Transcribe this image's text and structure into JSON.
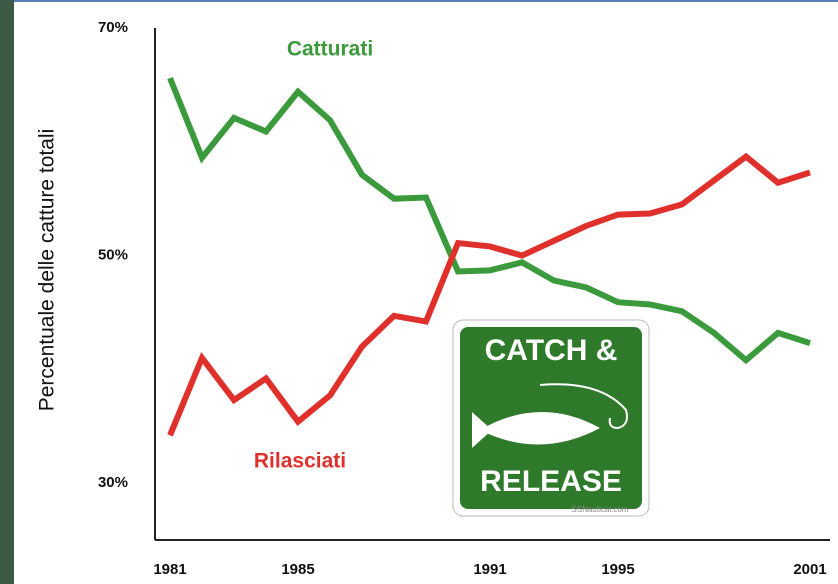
{
  "chart_data": {
    "type": "line",
    "y_label": "Percentuale delle catture totali",
    "x": [
      1981,
      1982,
      1983,
      1984,
      1985,
      1986,
      1987,
      1988,
      1989,
      1990,
      1991,
      1992,
      1993,
      1994,
      1995,
      1996,
      1997,
      1998,
      1999,
      2000,
      2001
    ],
    "series": [
      {
        "name": "Catturati",
        "color": "#3b9a3b",
        "values": [
          65.6,
          58.6,
          62.1,
          60.9,
          64.4,
          61.9,
          57.1,
          55.0,
          55.1,
          48.6,
          48.7,
          49.4,
          47.8,
          47.2,
          45.9,
          45.7,
          45.1,
          43.2,
          40.8,
          43.2,
          42.3
        ]
      },
      {
        "name": "Rilasciati",
        "color": "#e0302c",
        "values": [
          34.2,
          41.0,
          37.3,
          39.2,
          35.4,
          37.7,
          42.0,
          44.7,
          44.2,
          51.1,
          50.8,
          50.0,
          51.3,
          52.6,
          53.6,
          53.7,
          54.5,
          56.6,
          58.7,
          56.4,
          57.3
        ]
      }
    ],
    "xlim": [
      1981,
      2001
    ],
    "xticks": [
      1981,
      1985,
      1991,
      1995,
      2001
    ],
    "ylim": [
      25,
      70
    ],
    "yticks": [
      {
        "value": 30,
        "label": "30%"
      },
      {
        "value": 50,
        "label": "50%"
      },
      {
        "value": 70,
        "label": "70%"
      }
    ]
  },
  "sign": {
    "line1": "CATCH &",
    "line2": "RELEASE",
    "credit": "SSNautical.com"
  }
}
